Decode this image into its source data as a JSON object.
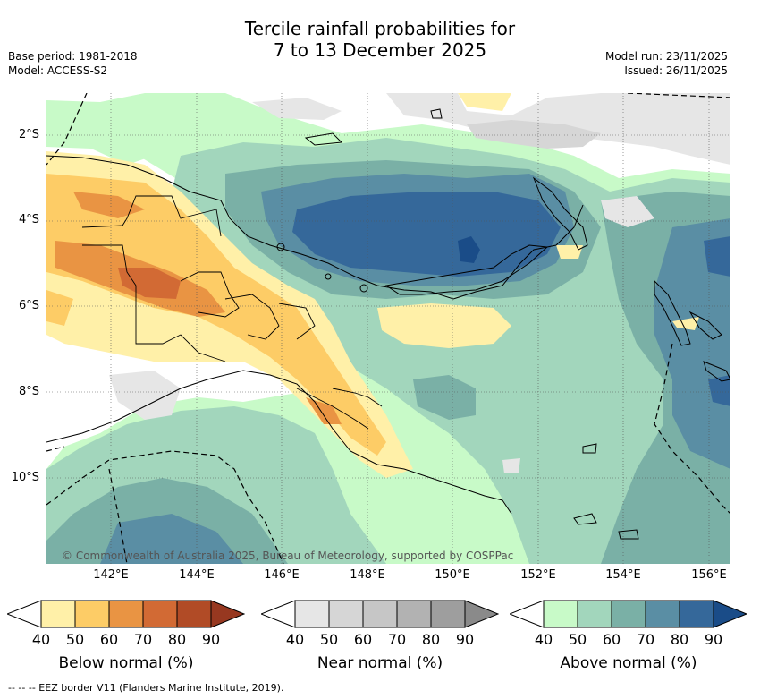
{
  "title": {
    "line1": "Tercile rainfall probabilities for",
    "line2": "7 to 13 December 2025"
  },
  "meta": {
    "base_period": "Base period: 1981-2018",
    "model": "Model: ACCESS-S2",
    "model_run": "Model run: 23/11/2025",
    "issued": "Issued: 26/11/2025"
  },
  "map": {
    "lat_labels": [
      "2°S",
      "4°S",
      "6°S",
      "8°S",
      "10°S"
    ],
    "lon_labels": [
      "142°E",
      "144°E",
      "146°E",
      "148°E",
      "150°E",
      "152°E",
      "154°E",
      "156°E"
    ],
    "copyright": "© Commonwealth of Australia 2025, Bureau of Meteorology, supported by COSPPac"
  },
  "colorbars": [
    {
      "name": "below",
      "label": "Below normal (%)",
      "ticks": [
        "40",
        "50",
        "60",
        "70",
        "80",
        "90"
      ],
      "colors": [
        "#fff0a8",
        "#fdcc66",
        "#e99443",
        "#d26a34",
        "#b14b26",
        "#973820"
      ]
    },
    {
      "name": "near",
      "label": "Near normal (%)",
      "ticks": [
        "40",
        "50",
        "60",
        "70",
        "80",
        "90"
      ],
      "colors": [
        "#e6e6e6",
        "#d6d6d6",
        "#c6c6c6",
        "#b2b2b2",
        "#9e9e9e",
        "#8a8a8a"
      ]
    },
    {
      "name": "above",
      "label": "Above normal (%)",
      "ticks": [
        "40",
        "50",
        "60",
        "70",
        "80",
        "90"
      ],
      "colors": [
        "#c8fac8",
        "#a2d6bc",
        "#7ab0a6",
        "#5a8ea4",
        "#35689a",
        "#1a4c88"
      ]
    }
  ],
  "footnote": "-- --  -- EEZ border V11 (Flanders Marine Institute, 2019)."
}
